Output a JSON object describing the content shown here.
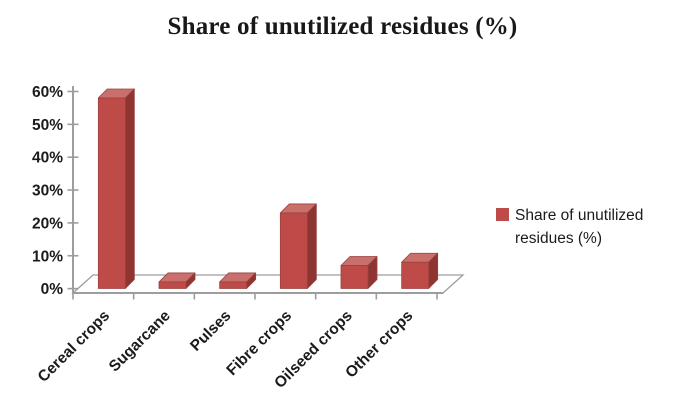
{
  "figure": {
    "title": "Share of unutilized residues (%)"
  },
  "legend": {
    "lines": [
      "Share of unutilized",
      "residues (%)"
    ]
  },
  "chart_data": {
    "type": "bar",
    "style": "3d-column",
    "title": "Share of unutilized residues (%)",
    "categories": [
      "Cereal crops",
      "Sugarcane",
      "Pulses",
      "Fibre crops",
      "Oilseed crops",
      "Other crops"
    ],
    "series": [
      {
        "name": "Share of unutilized residues (%)",
        "values": [
          58,
          2,
          2,
          23,
          7,
          8
        ]
      }
    ],
    "unit": "%",
    "xlabel": "",
    "ylabel": "",
    "ylim": [
      0,
      60
    ],
    "ytick_step": 10,
    "ytick_labels": [
      "0%",
      "10%",
      "20%",
      "30%",
      "40%",
      "50%",
      "60%"
    ],
    "grid": false,
    "legend_position": "right",
    "x_label_rotation_deg": -45,
    "colors": {
      "bar_front": "#be4b48",
      "bar_top": "#c9706c",
      "bar_side": "#8e3532",
      "bar_edge": "#9a423f",
      "axis": "#9d9d9d",
      "text": "#1b1b1b"
    }
  }
}
